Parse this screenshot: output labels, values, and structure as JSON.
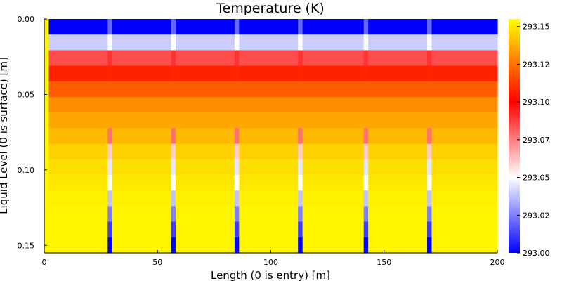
{
  "chart_data": {
    "type": "heatmap",
    "title": "Temperature (K)",
    "xlabel": "Length (0 is entry) [m]",
    "ylabel": "Liquid Level (0 is surface) [m]",
    "xlim": [
      0,
      200
    ],
    "ylim": [
      0.0,
      0.155
    ],
    "y_inverted": true,
    "x_ticks": [
      0,
      50,
      100,
      150,
      200
    ],
    "x_tick_labels": [
      "0",
      "50",
      "100",
      "150",
      "200"
    ],
    "y_ticks": [
      0.0,
      0.05,
      0.1,
      0.15
    ],
    "y_tick_labels": [
      "0.00",
      "0.05",
      "0.10",
      "0.15"
    ],
    "colorbar": {
      "range": [
        293.0,
        293.155
      ],
      "ticks": [
        293.0,
        293.025,
        293.05,
        293.075,
        293.1,
        293.125,
        293.15
      ],
      "tick_labels": [
        "293.00",
        "293.02",
        "293.05",
        "293.07",
        "293.10",
        "293.12",
        "293.15"
      ],
      "colors": [
        "#0000ff",
        "#ffffff",
        "#ff0000",
        "#ffff00"
      ]
    },
    "row_depths": [
      0.0,
      0.0103,
      0.0207,
      0.031,
      0.0413,
      0.0517,
      0.062,
      0.0723,
      0.0827,
      0.093,
      0.1033,
      0.1137,
      0.124,
      0.1343,
      0.1447
    ],
    "row_values": [
      293.0,
      293.04,
      293.085,
      293.107,
      293.12,
      293.13,
      293.136,
      293.14,
      293.145,
      293.148,
      293.15,
      293.152,
      293.153,
      293.153,
      293.153
    ],
    "x_boundaries": [
      0,
      2,
      28,
      30,
      56,
      58,
      84,
      86,
      112,
      114,
      141,
      143,
      169,
      171,
      200
    ],
    "column_kinds": [
      "edge",
      "pipe",
      "gap",
      "pipe",
      "gap",
      "pipe",
      "gap",
      "pipe",
      "gap",
      "pipe",
      "gap",
      "pipe",
      "gap",
      "pipe"
    ],
    "gap_values": [
      293.02,
      293.05,
      293.09,
      293.108,
      293.12,
      293.13,
      293.136,
      293.078,
      293.06,
      293.045,
      293.05,
      293.038,
      293.025,
      293.012,
      293.0
    ],
    "edge_value": 293.153
  }
}
